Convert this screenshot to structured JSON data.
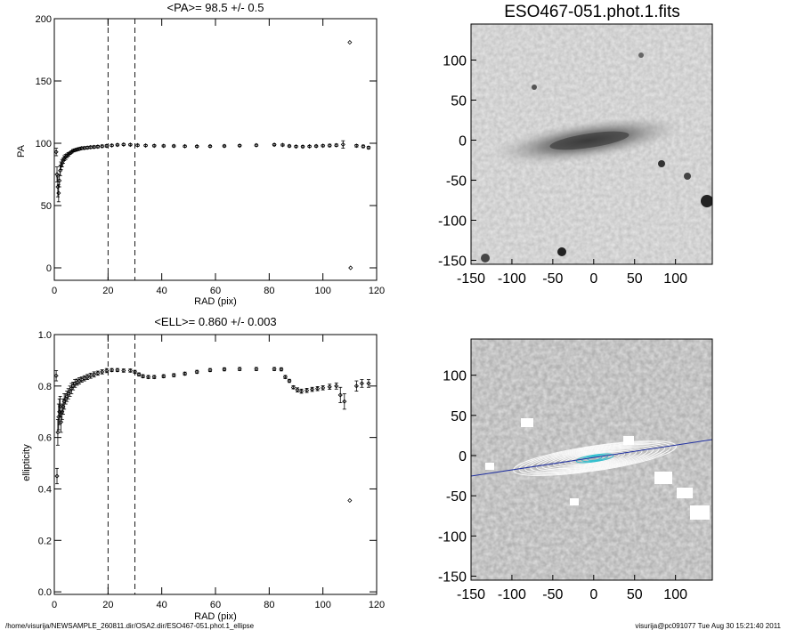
{
  "chart_data": [
    {
      "type": "scatter",
      "id": "pa",
      "title": "<PA>=  98.5 +/-   0.5",
      "xlabel": "RAD (pix)",
      "ylabel": "PA",
      "xlim": [
        0,
        120
      ],
      "ylim": [
        -10,
        200
      ],
      "xticks": [
        "0",
        "20",
        "40",
        "60",
        "80",
        "100",
        "120"
      ],
      "yticks": [
        "0",
        "50",
        "100",
        "150",
        "200"
      ],
      "vlines": [
        20,
        30
      ],
      "points": [
        [
          0.7,
          93,
          3
        ],
        [
          1.0,
          75,
          6
        ],
        [
          1.3,
          65,
          8
        ],
        [
          1.6,
          60,
          7
        ],
        [
          1.9,
          70,
          5
        ],
        [
          2.2,
          78,
          4
        ],
        [
          2.5,
          82,
          3
        ],
        [
          2.9,
          84,
          3
        ],
        [
          3.3,
          86,
          2
        ],
        [
          3.7,
          88,
          2
        ],
        [
          4.2,
          89,
          2
        ],
        [
          4.7,
          90,
          1.5
        ],
        [
          5.2,
          91,
          1.5
        ],
        [
          5.8,
          92,
          1
        ],
        [
          6.4,
          93,
          1
        ],
        [
          7.0,
          94,
          1
        ],
        [
          7.7,
          94.5,
          1
        ],
        [
          8.5,
          95,
          1
        ],
        [
          9.3,
          95.5,
          1
        ],
        [
          10.2,
          96,
          1
        ],
        [
          11.2,
          96.2,
          1
        ],
        [
          12.3,
          96.5,
          1
        ],
        [
          13.5,
          96.8,
          1
        ],
        [
          14.8,
          97,
          1
        ],
        [
          16.2,
          97.3,
          1
        ],
        [
          17.8,
          97.6,
          1
        ],
        [
          19.5,
          97.9,
          1
        ],
        [
          21.4,
          98.3,
          0.8
        ],
        [
          23.5,
          98.7,
          0.8
        ],
        [
          25.8,
          99,
          0.8
        ],
        [
          28.3,
          98.8,
          0.8
        ],
        [
          31.0,
          98.4,
          0.8
        ],
        [
          34.0,
          98.2,
          0.8
        ],
        [
          37.2,
          98.0,
          0.8
        ],
        [
          40.7,
          97.9,
          0.8
        ],
        [
          44.5,
          97.8,
          0.8
        ],
        [
          48.6,
          97.6,
          0.8
        ],
        [
          53.1,
          97.5,
          0.8
        ],
        [
          58.0,
          97.6,
          0.8
        ],
        [
          63.3,
          97.8,
          0.8
        ],
        [
          69.0,
          98.1,
          0.8
        ],
        [
          75.2,
          98.4,
          0.8
        ],
        [
          81.9,
          98.8,
          0.8
        ],
        [
          85.0,
          98.6,
          0.8
        ],
        [
          87.5,
          97.8,
          0.8
        ],
        [
          90.0,
          97.4,
          0.8
        ],
        [
          92.5,
          97.3,
          0.8
        ],
        [
          95.0,
          97.5,
          0.8
        ],
        [
          97.5,
          97.7,
          0.8
        ],
        [
          100.0,
          98.0,
          0.8
        ],
        [
          102.5,
          98.2,
          1
        ],
        [
          105.0,
          98.4,
          1
        ],
        [
          107.5,
          99,
          3
        ],
        [
          110.0,
          181,
          0
        ],
        [
          110.3,
          0,
          0
        ],
        [
          112.5,
          98,
          1
        ],
        [
          115.0,
          97.5,
          1
        ],
        [
          117.0,
          96.5,
          1
        ]
      ]
    },
    {
      "type": "scatter",
      "id": "ell",
      "title": "<ELL>= 0.860 +/-  0.003",
      "xlabel": "RAD (pix)",
      "ylabel": "ellipticity",
      "xlim": [
        0,
        120
      ],
      "ylim": [
        -0.01,
        1.0
      ],
      "xticks": [
        "0",
        "20",
        "40",
        "60",
        "80",
        "100",
        "120"
      ],
      "yticks": [
        "0.0",
        "0.2",
        "0.4",
        "0.6",
        "0.8",
        "1.0"
      ],
      "vlines": [
        20,
        30
      ],
      "points": [
        [
          0.7,
          0.84,
          0.02
        ],
        [
          1.0,
          0.45,
          0.03
        ],
        [
          1.3,
          0.62,
          0.05
        ],
        [
          1.6,
          0.68,
          0.05
        ],
        [
          1.9,
          0.7,
          0.05
        ],
        [
          2.2,
          0.72,
          0.04
        ],
        [
          2.5,
          0.66,
          0.04
        ],
        [
          2.9,
          0.7,
          0.03
        ],
        [
          3.3,
          0.72,
          0.03
        ],
        [
          3.7,
          0.74,
          0.03
        ],
        [
          4.2,
          0.75,
          0.02
        ],
        [
          4.7,
          0.76,
          0.02
        ],
        [
          5.2,
          0.77,
          0.02
        ],
        [
          5.8,
          0.78,
          0.02
        ],
        [
          6.4,
          0.79,
          0.02
        ],
        [
          7.0,
          0.8,
          0.015
        ],
        [
          7.7,
          0.81,
          0.015
        ],
        [
          8.5,
          0.815,
          0.012
        ],
        [
          9.3,
          0.82,
          0.012
        ],
        [
          10.2,
          0.825,
          0.01
        ],
        [
          11.2,
          0.83,
          0.01
        ],
        [
          12.3,
          0.835,
          0.01
        ],
        [
          13.5,
          0.84,
          0.01
        ],
        [
          14.8,
          0.845,
          0.01
        ],
        [
          16.2,
          0.85,
          0.008
        ],
        [
          17.8,
          0.855,
          0.008
        ],
        [
          19.5,
          0.86,
          0.008
        ],
        [
          21.4,
          0.862,
          0.006
        ],
        [
          23.5,
          0.862,
          0.006
        ],
        [
          25.8,
          0.86,
          0.006
        ],
        [
          28.3,
          0.86,
          0.006
        ],
        [
          30.0,
          0.855,
          0.006
        ],
        [
          31.5,
          0.845,
          0.006
        ],
        [
          33.0,
          0.838,
          0.006
        ],
        [
          35.0,
          0.835,
          0.006
        ],
        [
          37.2,
          0.835,
          0.006
        ],
        [
          40.7,
          0.838,
          0.006
        ],
        [
          44.5,
          0.842,
          0.006
        ],
        [
          48.6,
          0.848,
          0.006
        ],
        [
          53.1,
          0.855,
          0.006
        ],
        [
          58.0,
          0.862,
          0.006
        ],
        [
          63.3,
          0.865,
          0.006
        ],
        [
          69.0,
          0.866,
          0.006
        ],
        [
          75.2,
          0.866,
          0.006
        ],
        [
          81.9,
          0.866,
          0.006
        ],
        [
          84.5,
          0.865,
          0.006
        ],
        [
          86.0,
          0.835,
          0.006
        ],
        [
          87.5,
          0.82,
          0.006
        ],
        [
          89.0,
          0.795,
          0.006
        ],
        [
          90.5,
          0.785,
          0.008
        ],
        [
          92.0,
          0.78,
          0.008
        ],
        [
          94.0,
          0.783,
          0.008
        ],
        [
          96.0,
          0.787,
          0.008
        ],
        [
          98.0,
          0.79,
          0.008
        ],
        [
          100.0,
          0.793,
          0.008
        ],
        [
          102.5,
          0.797,
          0.01
        ],
        [
          105.0,
          0.8,
          0.012
        ],
        [
          106.5,
          0.765,
          0.03
        ],
        [
          108.0,
          0.74,
          0.03
        ],
        [
          110.0,
          0.355,
          0
        ],
        [
          112.5,
          0.8,
          0.02
        ],
        [
          114.5,
          0.81,
          0.015
        ],
        [
          117.0,
          0.81,
          0.015
        ]
      ]
    },
    {
      "type": "heatmap",
      "id": "img1",
      "title": "ESO467-051.phot.1.fits",
      "xlim": [
        -150,
        145
      ],
      "ylim": [
        -155,
        145
      ],
      "xticks": [
        "-150",
        "-100",
        "-50",
        "0",
        "50",
        "100"
      ],
      "yticks": [
        "100",
        "50",
        "0",
        "-50",
        "-100",
        "-150"
      ]
    },
    {
      "type": "heatmap",
      "id": "img2",
      "title": "",
      "xlim": [
        -150,
        145
      ],
      "ylim": [
        -155,
        145
      ],
      "xticks": [
        "-150",
        "-100",
        "-50",
        "0",
        "50",
        "100"
      ],
      "yticks": [
        "100",
        "50",
        "0",
        "-50",
        "-100",
        "-150"
      ],
      "overlay": "isophote ellipses, PA 98.5, ELL 0.86"
    }
  ],
  "footer": {
    "left": "/home/visurija/NEWSAMPLE_260811.dir/OSA2.dir/ESO467-051.phot.1_ellipse",
    "right": "visurija@pc091077  Tue Aug 30 15:21:40 2011"
  }
}
